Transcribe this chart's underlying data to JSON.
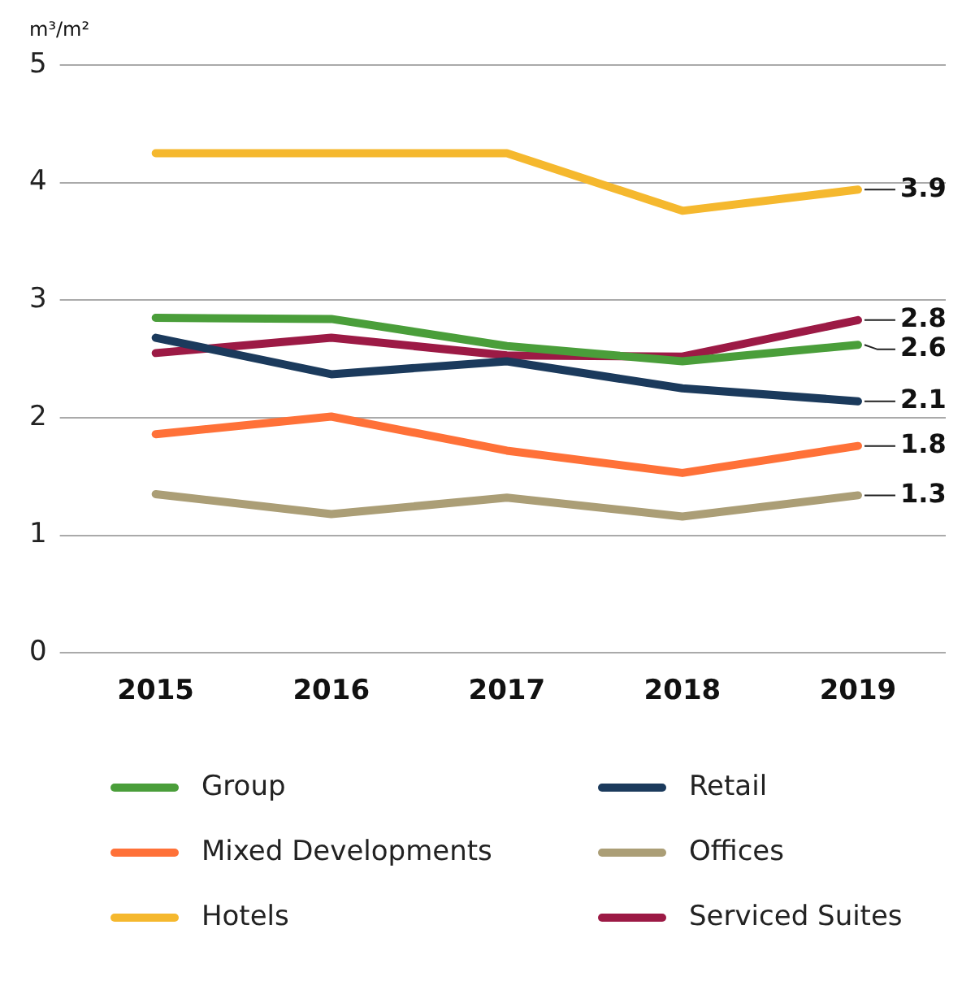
{
  "chart_data": {
    "type": "line",
    "ylabel": "m³/m²",
    "categories": [
      "2015",
      "2016",
      "2017",
      "2018",
      "2019"
    ],
    "series": [
      {
        "name": "Group",
        "color": "#4a9e3a",
        "values": [
          2.85,
          2.84,
          2.61,
          2.48,
          2.62
        ],
        "value_labels": [
          null,
          null,
          null,
          null,
          "2.6"
        ]
      },
      {
        "name": "Retail",
        "color": "#1b3a5c",
        "values": [
          2.68,
          2.37,
          2.48,
          2.25,
          2.14
        ],
        "value_labels": [
          null,
          null,
          null,
          null,
          "2.1"
        ]
      },
      {
        "name": "Mixed Developments",
        "color": "#ff7138",
        "values": [
          1.86,
          2.01,
          1.72,
          1.53,
          1.76
        ],
        "value_labels": [
          null,
          null,
          null,
          null,
          "1.8"
        ]
      },
      {
        "name": "Offices",
        "color": "#ab9e76",
        "values": [
          1.35,
          1.18,
          1.32,
          1.16,
          1.34
        ],
        "value_labels": [
          null,
          null,
          null,
          null,
          "1.3"
        ]
      },
      {
        "name": "Hotels",
        "color": "#f5b82e",
        "values": [
          4.25,
          4.25,
          4.25,
          3.76,
          3.94
        ],
        "value_labels": [
          null,
          null,
          null,
          null,
          "3.9"
        ]
      },
      {
        "name": "Serviced Suites",
        "color": "#9c1a45",
        "values": [
          2.55,
          2.68,
          2.53,
          2.52,
          2.83
        ],
        "value_labels": [
          null,
          null,
          null,
          null,
          "2.8"
        ]
      }
    ],
    "ylim": [
      0,
      5
    ],
    "yticks": [
      0,
      1,
      2,
      3,
      4,
      5
    ],
    "grid": "y",
    "legend": "bottom",
    "marker": "none",
    "line_style": "solid"
  }
}
